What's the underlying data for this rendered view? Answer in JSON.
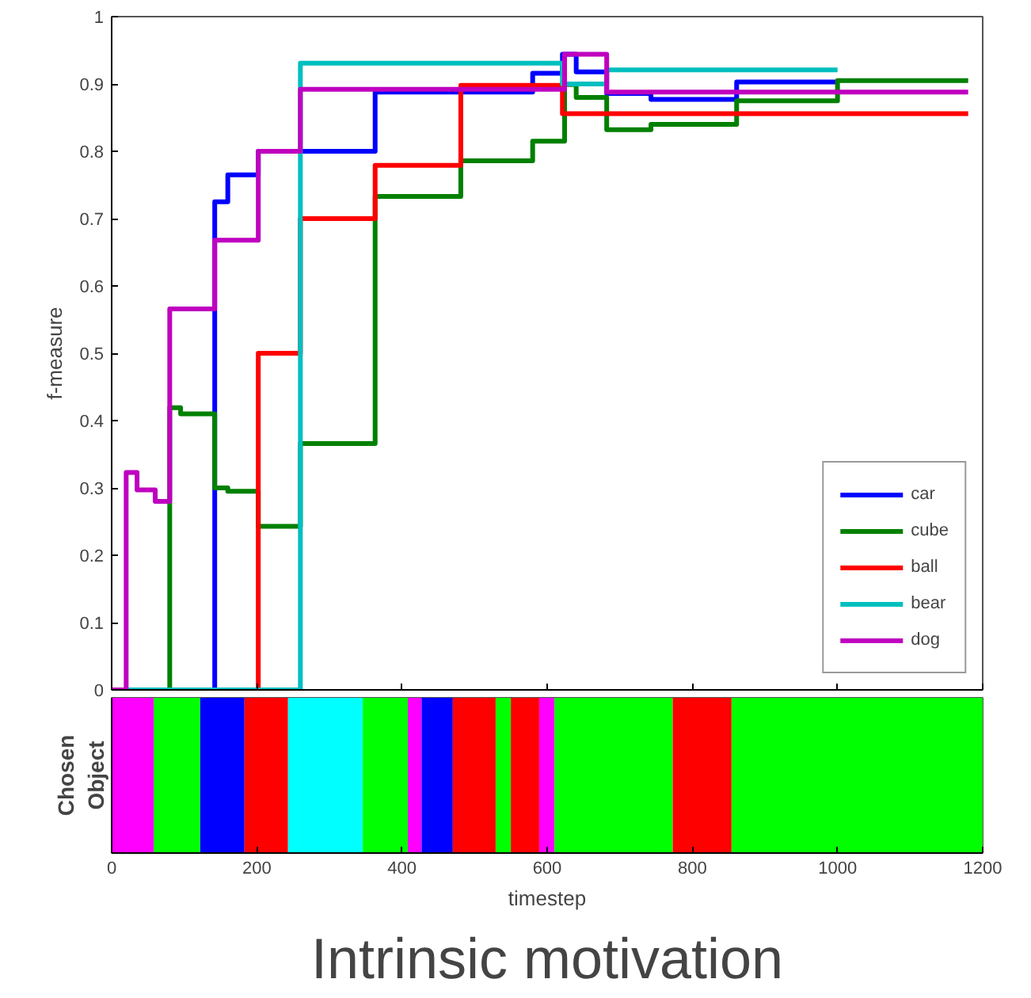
{
  "chart_data": [
    {
      "type": "step",
      "ylabel": "f-measure",
      "xlim": [
        0,
        1200
      ],
      "xticks": [
        {
          "value": 0,
          "label": null
        },
        {
          "value": 200,
          "label": null
        },
        {
          "value": 400,
          "label": null
        },
        {
          "value": 600,
          "label": null
        },
        {
          "value": 800,
          "label": null
        },
        {
          "value": 1000,
          "label": null
        },
        {
          "value": 1200,
          "label": null
        }
      ],
      "ylim": [
        0,
        1
      ],
      "yticks": [
        0,
        0.1,
        0.2,
        0.3,
        0.4,
        0.5,
        0.6,
        0.7,
        0.8,
        0.9,
        1
      ],
      "tick_labels": "y",
      "grid": false,
      "legend": "bottom right",
      "line_style": "solid",
      "marker": "none",
      "series": [
        {
          "name": "car",
          "color": "#0000ff",
          "x": [
            0,
            142,
            160,
            202,
            363,
            580,
            621,
            640,
            682,
            743,
            861,
            1000
          ],
          "values": [
            0,
            0.725,
            0.765,
            0.8,
            0.888,
            0.916,
            0.944,
            0.918,
            0.886,
            0.877,
            0.903,
            0.903
          ]
        },
        {
          "name": "cube",
          "color": "#008000",
          "x": [
            0,
            80,
            95,
            142,
            160,
            202,
            260,
            363,
            481,
            580,
            624,
            640,
            682,
            743,
            861,
            1000,
            1180
          ],
          "values": [
            0,
            0.419,
            0.41,
            0.3,
            0.295,
            0.243,
            0.366,
            0.733,
            0.786,
            0.815,
            0.899,
            0.88,
            0.832,
            0.84,
            0.875,
            0.905,
            0.905
          ]
        },
        {
          "name": "ball",
          "color": "#ff0000",
          "x": [
            0,
            202,
            260,
            363,
            481,
            621,
            1180
          ],
          "values": [
            0,
            0.5,
            0.7,
            0.779,
            0.898,
            0.856,
            0.856
          ]
        },
        {
          "name": "bear",
          "color": "#00bfbf",
          "x": [
            0,
            260,
            621,
            682,
            1000
          ],
          "values": [
            0,
            0.931,
            0.9,
            0.921,
            0.921
          ]
        },
        {
          "name": "dog",
          "color": "#bf00bf",
          "x": [
            0,
            20,
            35,
            60,
            80,
            142,
            202,
            260,
            624,
            682,
            1180
          ],
          "values": [
            0,
            0.323,
            0.297,
            0.28,
            0.566,
            0.668,
            0.8,
            0.892,
            0.944,
            0.888,
            0.888
          ]
        }
      ]
    },
    {
      "type": "bar",
      "orientation": "horizontal",
      "stacked": true,
      "categories": [
        null
      ],
      "ylabel": "Chosen Object",
      "xlabel": "timestep",
      "xlim": [
        0,
        1200
      ],
      "xticks": [
        0,
        200,
        400,
        600,
        800,
        1000,
        1200
      ],
      "annotations": [
        "Intrinsic motivation"
      ],
      "series": [
        {
          "color": "#ff00ff",
          "values": [
            58
          ]
        },
        {
          "color": "#00ff00",
          "values": [
            64
          ]
        },
        {
          "color": "#0000ff",
          "values": [
            61
          ]
        },
        {
          "color": "#ff0000",
          "values": [
            60
          ]
        },
        {
          "color": "#00ffff",
          "values": [
            103
          ]
        },
        {
          "color": "#00ff00",
          "values": [
            62
          ]
        },
        {
          "color": "#ff00ff",
          "values": [
            19
          ]
        },
        {
          "color": "#0000ff",
          "values": [
            43
          ]
        },
        {
          "color": "#ff0000",
          "values": [
            59
          ]
        },
        {
          "color": "#00ff00",
          "values": [
            21
          ]
        },
        {
          "color": "#ff0000",
          "values": [
            39
          ]
        },
        {
          "color": "#ff00ff",
          "values": [
            21
          ]
        },
        {
          "color": "#00ff00",
          "values": [
            163
          ]
        },
        {
          "color": "#ff0000",
          "values": [
            81
          ]
        },
        {
          "color": "#00ff00",
          "values": [
            346
          ]
        }
      ]
    }
  ]
}
